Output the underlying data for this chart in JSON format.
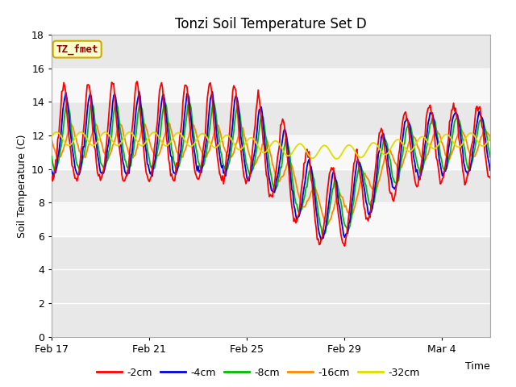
{
  "title": "Tonzi Soil Temperature Set D",
  "xlabel": "Time",
  "ylabel": "Soil Temperature (C)",
  "ylim": [
    0,
    18
  ],
  "yticks": [
    0,
    2,
    4,
    6,
    8,
    10,
    12,
    14,
    16,
    18
  ],
  "annotation_text": "TZ_fmet",
  "annotation_color": "#8b0000",
  "annotation_bg": "#ffffcc",
  "annotation_border": "#ccaa00",
  "series_colors": {
    "-2cm": "#ff0000",
    "-4cm": "#0000dd",
    "-8cm": "#00bb00",
    "-16cm": "#ff8800",
    "-32cm": "#dddd00"
  },
  "legend_labels": [
    "-2cm",
    "-4cm",
    "-8cm",
    "-16cm",
    "-32cm"
  ],
  "plot_bg_light": "#f0f0f0",
  "plot_bg_dark": "#dcdcdc",
  "title_fontsize": 12,
  "axis_fontsize": 9,
  "tick_fontsize": 9,
  "legend_fontsize": 9,
  "xlim": [
    0,
    18
  ],
  "xtick_positions": [
    0,
    4,
    8,
    12,
    16
  ],
  "xtick_labels": [
    "Feb 17",
    "Feb 21",
    "Feb 25",
    "Feb 29",
    "Mar 4"
  ]
}
